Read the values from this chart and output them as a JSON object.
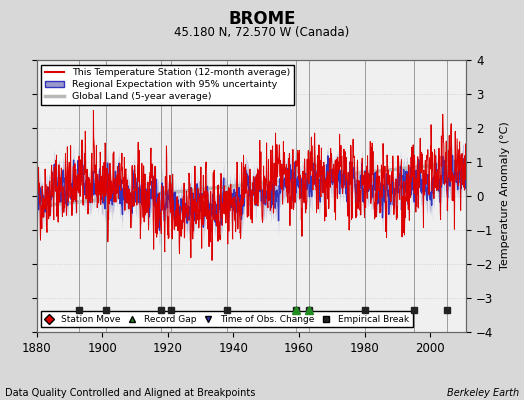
{
  "title": "BROME",
  "subtitle": "45.180 N, 72.570 W (Canada)",
  "ylabel": "Temperature Anomaly (°C)",
  "xlabel_bottom": "Data Quality Controlled and Aligned at Breakpoints",
  "xlabel_right": "Berkeley Earth",
  "ylim": [
    -4,
    4
  ],
  "xlim": [
    1880,
    2011
  ],
  "yticks": [
    -4,
    -3,
    -2,
    -1,
    0,
    1,
    2,
    3,
    4
  ],
  "xticks": [
    1880,
    1900,
    1920,
    1940,
    1960,
    1980,
    2000
  ],
  "fig_bg_color": "#d8d8d8",
  "plot_bg_color": "#f0f0f0",
  "station_color": "#dd0000",
  "regional_color": "#3333bb",
  "regional_fill_color": "#9999cc",
  "global_color": "#b8b8b8",
  "vertical_line_color": "#888888",
  "empirical_breaks": [
    1893,
    1901,
    1918,
    1921,
    1938,
    1959,
    1963,
    1980,
    1995,
    2005
  ],
  "record_gaps": [
    1959,
    1963
  ],
  "obs_changes": [],
  "station_moves": [],
  "seed": 123
}
